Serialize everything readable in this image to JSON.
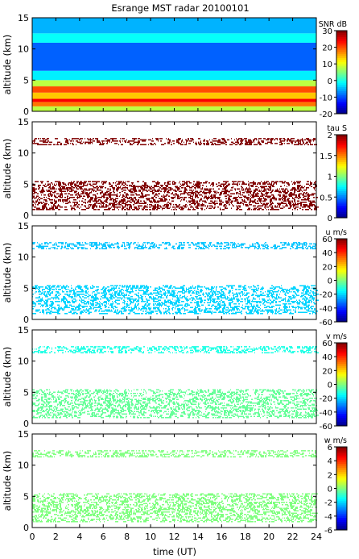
{
  "chart_data": {
    "type": "heatmap",
    "title": "Esrange MST radar 20100101",
    "xlabel": "time (UT)",
    "xlim": [
      0,
      24
    ],
    "x_ticks": [
      0,
      2,
      4,
      6,
      8,
      10,
      12,
      14,
      16,
      18,
      20,
      22,
      24
    ],
    "x_tick_labels": [
      "0",
      "2",
      "4",
      "6",
      "8",
      "10",
      "12",
      "14",
      "16",
      "18",
      "20",
      "22",
      "24"
    ],
    "panels": [
      {
        "ylabel": "altitude (km)",
        "ylim": [
          0,
          15
        ],
        "y_ticks": [
          0,
          5,
          10,
          15
        ],
        "y_tick_labels": [
          "0",
          "5",
          "10",
          "15"
        ],
        "colorbar_label": "SNR dB",
        "colorbar_range": [
          -20,
          30
        ],
        "colorbar_ticks": [
          -20,
          -10,
          0,
          10,
          20,
          30
        ],
        "colorbar_tick_labels": [
          "-20",
          "-10",
          "0",
          "10",
          "20",
          "30"
        ],
        "coverage": "full",
        "layers": [
          {
            "alt_min": 0.0,
            "alt_max": 0.8,
            "value": 8
          },
          {
            "alt_min": 0.8,
            "alt_max": 1.5,
            "value": 18
          },
          {
            "alt_min": 1.5,
            "alt_max": 2.0,
            "value": 24
          },
          {
            "alt_min": 2.0,
            "alt_max": 3.0,
            "value": 14
          },
          {
            "alt_min": 3.0,
            "alt_max": 4.0,
            "value": 20
          },
          {
            "alt_min": 4.0,
            "alt_max": 5.0,
            "value": 8
          },
          {
            "alt_min": 5.0,
            "alt_max": 6.5,
            "value": -2
          },
          {
            "alt_min": 6.5,
            "alt_max": 11.0,
            "value": -9
          },
          {
            "alt_min": 11.0,
            "alt_max": 12.5,
            "value": -1
          },
          {
            "alt_min": 12.5,
            "alt_max": 15.0,
            "value": -5
          }
        ]
      },
      {
        "ylabel": "altitude (km)",
        "ylim": [
          0,
          15
        ],
        "y_ticks": [
          0,
          5,
          10,
          15
        ],
        "y_tick_labels": [
          "0",
          "5",
          "10",
          "15"
        ],
        "colorbar_label": "tau S",
        "colorbar_range": [
          0,
          2
        ],
        "colorbar_ticks": [
          0,
          0.5,
          1,
          1.5,
          2
        ],
        "colorbar_tick_labels": [
          "0",
          "0.5",
          "1",
          "1.5",
          "2"
        ],
        "coverage": "sparse",
        "layers": [
          {
            "alt_min": 1.0,
            "alt_max": 5.5,
            "value": 2
          },
          {
            "alt_min": 11.4,
            "alt_max": 12.4,
            "value": 2
          }
        ]
      },
      {
        "ylabel": "altitude (km)",
        "ylim": [
          0,
          15
        ],
        "y_ticks": [
          0,
          5,
          10,
          15
        ],
        "y_tick_labels": [
          "0",
          "5",
          "10",
          "15"
        ],
        "colorbar_label": "u m/s",
        "colorbar_range": [
          -60,
          60
        ],
        "colorbar_ticks": [
          -60,
          -40,
          -20,
          0,
          20,
          40,
          60
        ],
        "colorbar_tick_labels": [
          "-60",
          "-40",
          "-20",
          "0",
          "20",
          "40",
          "60"
        ],
        "coverage": "sparse",
        "layers": [
          {
            "alt_min": 1.0,
            "alt_max": 5.5,
            "value": -20
          },
          {
            "alt_min": 11.4,
            "alt_max": 12.4,
            "value": -22
          }
        ]
      },
      {
        "ylabel": "altitude (km)",
        "ylim": [
          0,
          15
        ],
        "y_ticks": [
          0,
          5,
          10,
          15
        ],
        "y_tick_labels": [
          "0",
          "5",
          "10",
          "15"
        ],
        "colorbar_label": "v m/s",
        "colorbar_range": [
          -60,
          60
        ],
        "colorbar_ticks": [
          -60,
          -40,
          -20,
          0,
          20,
          40,
          60
        ],
        "colorbar_tick_labels": [
          "-60",
          "-40",
          "-20",
          "0",
          "20",
          "40",
          "60"
        ],
        "coverage": "sparse",
        "layers": [
          {
            "alt_min": 1.0,
            "alt_max": 5.5,
            "value": -3
          },
          {
            "alt_min": 11.4,
            "alt_max": 12.4,
            "value": -12
          }
        ]
      },
      {
        "ylabel": "altitude (km)",
        "ylim": [
          0,
          15
        ],
        "y_ticks": [
          0,
          5,
          10,
          15
        ],
        "y_tick_labels": [
          "0",
          "5",
          "10",
          "15"
        ],
        "colorbar_label": "w m/s",
        "colorbar_range": [
          -6,
          6
        ],
        "colorbar_ticks": [
          -6,
          -4,
          -2,
          0,
          2,
          4,
          6
        ],
        "colorbar_tick_labels": [
          "-6",
          "-4",
          "-2",
          "0",
          "2",
          "4",
          "6"
        ],
        "coverage": "sparse",
        "layers": [
          {
            "alt_min": 1.0,
            "alt_max": 5.5,
            "value": 0
          },
          {
            "alt_min": 11.4,
            "alt_max": 12.4,
            "value": 0
          }
        ]
      }
    ]
  }
}
